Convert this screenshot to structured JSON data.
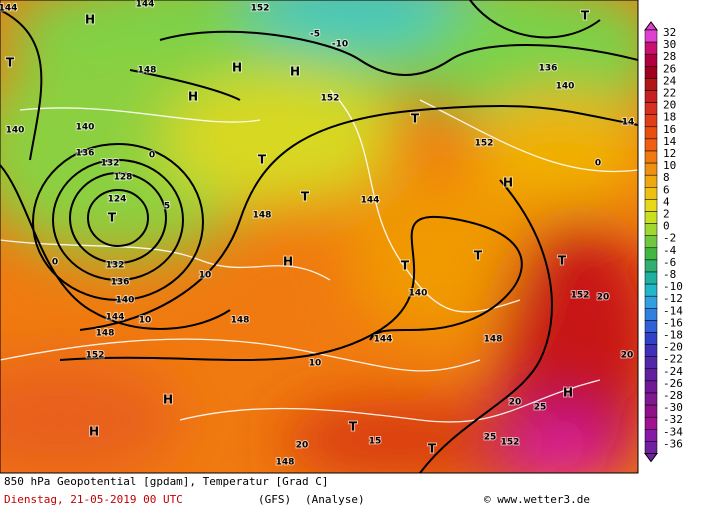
{
  "map": {
    "labels": [
      "144",
      "H",
      "144",
      "152",
      "T",
      "-10",
      "-5",
      "H",
      "H",
      "H",
      "148",
      "152",
      "140",
      "136",
      "140",
      "140",
      "136",
      "132",
      "128",
      "124",
      "T",
      "132",
      "136",
      "140",
      "144",
      "148",
      "152",
      "148",
      "H",
      "T",
      "T",
      "148",
      "144",
      "T",
      "T",
      "H",
      "140",
      "144",
      "148",
      "152",
      "T",
      "H",
      "H",
      "H",
      "T",
      "T",
      "152",
      "148",
      "10",
      "10",
      "10",
      "15",
      "20",
      "20",
      "25",
      "25",
      "20",
      "20",
      "0",
      "5",
      "0",
      "T",
      "T",
      "152",
      "14",
      "0"
    ]
  },
  "legend": {
    "ticks": [
      32,
      30,
      28,
      26,
      24,
      22,
      20,
      18,
      16,
      14,
      12,
      10,
      8,
      6,
      4,
      2,
      0,
      -2,
      -4,
      -6,
      -8,
      -10,
      -12,
      -14,
      -16,
      -18,
      -20,
      -22,
      -24,
      -26,
      -28,
      -30,
      -32,
      -34,
      -36
    ]
  },
  "footer": {
    "title": "850 hPa Geopotential [gpdam], Temperatur [Grad C]",
    "date": "Dienstag, 21-05-2019  00 UTC",
    "model": "(GFS)",
    "run": "(Analyse)",
    "source": "© www.wetter3.de"
  }
}
